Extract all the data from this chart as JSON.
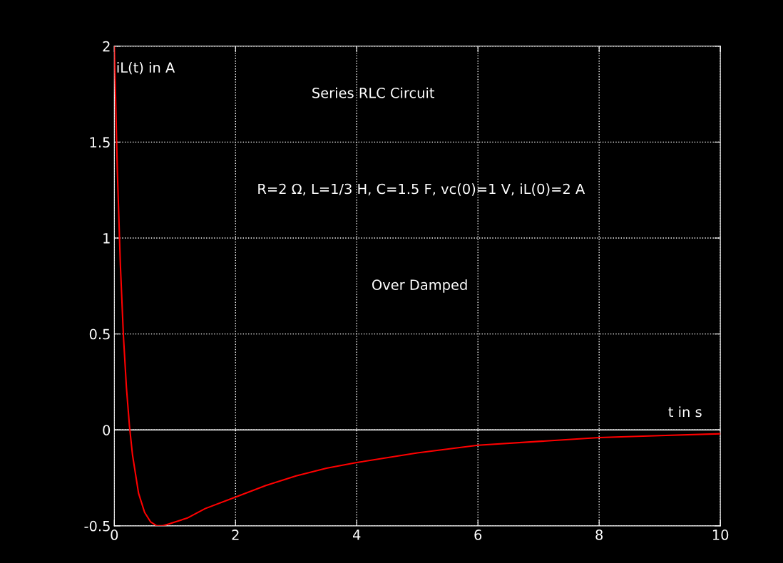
{
  "chart_data": {
    "type": "line",
    "title": "Series RLC Circuit",
    "xlabel": "t in s",
    "ylabel": "iL(t) in A",
    "annotations": [
      "R=2 Ω, L=1/3 H, C=1.5 F, vc(0)=1 V, iL(0)=2 A",
      "Over Damped"
    ],
    "series": [
      {
        "color": "#ff0000",
        "x": [
          0,
          0.05,
          0.1,
          0.15,
          0.2,
          0.25,
          0.3,
          0.4,
          0.5,
          0.6,
          0.7,
          0.8,
          0.9,
          1.0,
          1.2,
          1.5,
          2,
          2.5,
          3,
          3.5,
          4,
          5,
          6,
          7,
          8,
          9,
          10
        ],
        "values": [
          2.0,
          1.35,
          0.86,
          0.49,
          0.22,
          0.02,
          -0.13,
          -0.33,
          -0.43,
          -0.48,
          -0.5,
          -0.5,
          -0.49,
          -0.48,
          -0.46,
          -0.41,
          -0.35,
          -0.29,
          -0.24,
          -0.2,
          -0.17,
          -0.12,
          -0.08,
          -0.06,
          -0.04,
          -0.03,
          -0.02
        ]
      }
    ],
    "xlim": [
      0,
      10
    ],
    "ylim": [
      -0.5,
      2
    ],
    "xticks": [
      0,
      2,
      4,
      6,
      8,
      10
    ],
    "yticks": [
      -0.5,
      0,
      0.5,
      1,
      1.5,
      2
    ],
    "grid": true,
    "line_style": "solid",
    "marker": "none",
    "ref_lines": [
      {
        "axis": "y",
        "value": 0,
        "color": "#ffffff",
        "line_style": "solid"
      }
    ]
  }
}
